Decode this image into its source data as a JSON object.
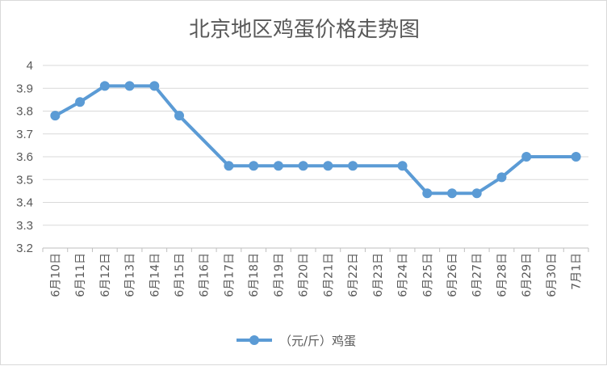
{
  "chart_data": {
    "type": "line",
    "title": "北京地区鸡蛋价格走势图",
    "xlabel": "",
    "ylabel": "",
    "ylim": [
      3.2,
      4.0
    ],
    "ytick_step": 0.1,
    "yticks": [
      "3.2",
      "3.3",
      "3.4",
      "3.5",
      "3.6",
      "3.7",
      "3.8",
      "3.9",
      "4"
    ],
    "grid": true,
    "legend_position": "bottom",
    "categories": [
      "6月10日",
      "6月11日",
      "6月12日",
      "6月13日",
      "6月14日",
      "6月15日",
      "6月16日",
      "6月17日",
      "6月18日",
      "6月19日",
      "6月20日",
      "6月21日",
      "6月22日",
      "6月23日",
      "6月24日",
      "6月25日",
      "6月26日",
      "6月27日",
      "6月28日",
      "6月29日",
      "6月30日",
      "7月1日"
    ],
    "series": [
      {
        "name": "（元/斤）鸡蛋",
        "color": "#5b9bd5",
        "values": [
          3.78,
          3.84,
          3.91,
          3.91,
          3.91,
          3.78,
          null,
          3.56,
          3.56,
          3.56,
          3.56,
          3.56,
          3.56,
          null,
          3.56,
          3.44,
          3.44,
          3.44,
          3.51,
          3.6,
          null,
          3.6
        ]
      }
    ]
  }
}
